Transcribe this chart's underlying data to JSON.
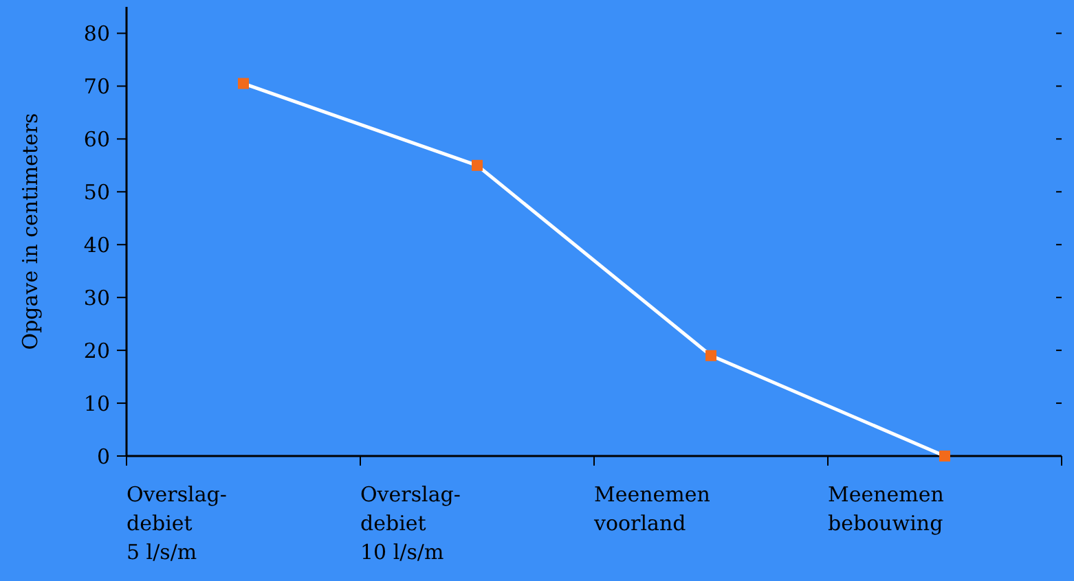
{
  "chart_data": {
    "type": "line",
    "ylabel": "Opgave in centimeters",
    "categories": [
      "Overslag-\ndebiet\n5 l/s/m",
      "Overslag-\ndebiet\n10 l/s/m",
      "Meenemen\nvoorland",
      "Meenemen\nbebouwing"
    ],
    "series": [
      {
        "color": "#ffffff",
        "values": [
          70.5,
          55,
          19,
          0
        ]
      }
    ],
    "ylim": [
      0,
      85
    ],
    "yticks": [
      0,
      10,
      20,
      30,
      40,
      50,
      60,
      70,
      80
    ],
    "marker": "square",
    "line_style": "solid"
  }
}
